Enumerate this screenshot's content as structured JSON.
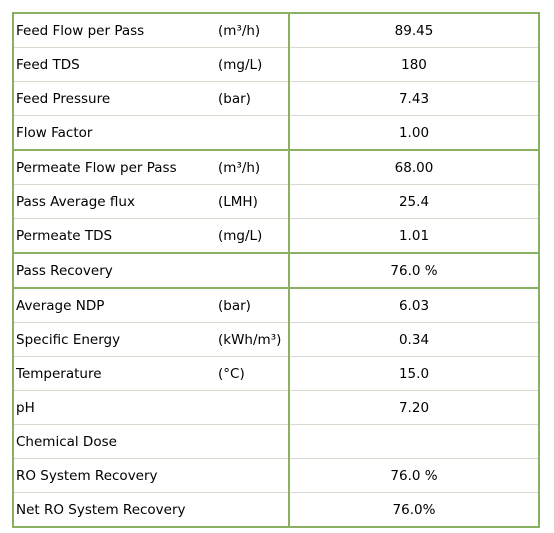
{
  "table": {
    "rows": [
      {
        "label": "Feed Flow per Pass",
        "unit": "(m³/h)",
        "value": "89.45"
      },
      {
        "label": "Feed TDS",
        "unit": "(mg/L)",
        "value": "180"
      },
      {
        "label": "Feed Pressure",
        "unit": "(bar)",
        "value": "7.43"
      },
      {
        "label": "Flow Factor",
        "unit": "",
        "value": "1.00"
      },
      {
        "label": "Permeate Flow per Pass",
        "unit": "(m³/h)",
        "value": "68.00"
      },
      {
        "label": "Pass Average flux",
        "unit": "(LMH)",
        "value": "25.4"
      },
      {
        "label": "Permeate TDS",
        "unit": "(mg/L)",
        "value": "1.01"
      },
      {
        "label": "Pass Recovery",
        "unit": "",
        "value": "76.0 %"
      },
      {
        "label": "Average NDP",
        "unit": "(bar)",
        "value": "6.03"
      },
      {
        "label": "Specific Energy",
        "unit": "(kWh/m³)",
        "value": "0.34"
      },
      {
        "label": "Temperature",
        "unit": "(°C)",
        "value": "15.0"
      },
      {
        "label": "pH",
        "unit": "",
        "value": "7.20"
      },
      {
        "label": "Chemical Dose",
        "unit": "",
        "value": ""
      },
      {
        "label": "RO System Recovery",
        "unit": "",
        "value": "76.0 %"
      },
      {
        "label": "Net RO System Recovery",
        "unit": "",
        "value": "76.0%"
      }
    ]
  },
  "colors": {
    "border_major": "#8ab062",
    "border_minor": "#d6dccd"
  }
}
